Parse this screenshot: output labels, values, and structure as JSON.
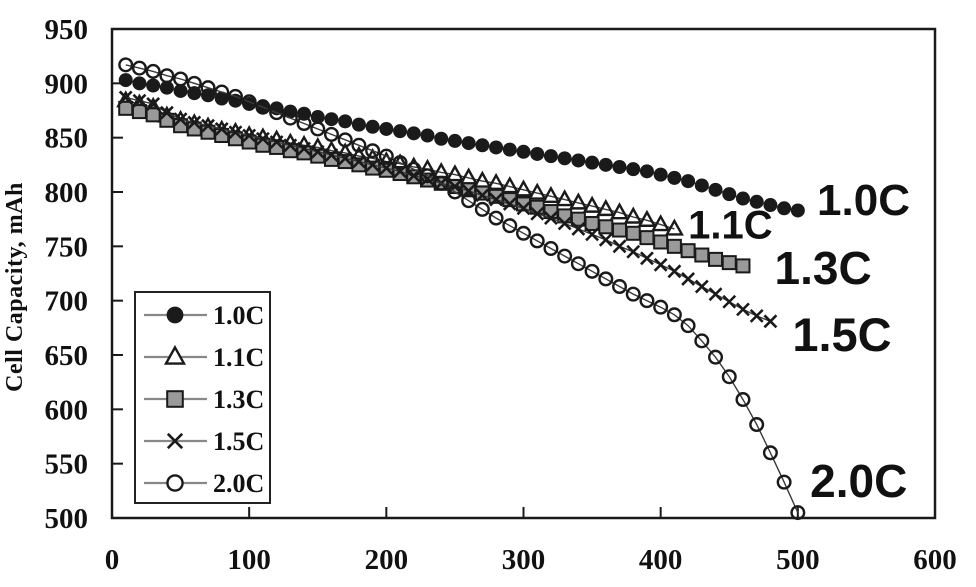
{
  "page": {
    "background": "#ffffff"
  },
  "colors": {
    "axis": "#1a1a1a",
    "text": "#111111",
    "series_line": "#3a3a3a",
    "legend_line": "#888888",
    "square_fill": "#9a9a9a",
    "legend_border": "#222222"
  },
  "chart_data": {
    "type": "line",
    "title": "",
    "xlabel": "",
    "ylabel": "Cell Capacity, mAh",
    "xlim": [
      0,
      600
    ],
    "ylim": [
      500,
      950
    ],
    "x_ticks": [
      0,
      100,
      200,
      300,
      400,
      500,
      600
    ],
    "y_ticks": [
      500,
      550,
      600,
      650,
      700,
      750,
      800,
      850,
      900,
      950
    ],
    "grid": false,
    "legend_position": "inside-left",
    "legend_items": [
      "1.0C",
      "1.1C",
      "1.3C",
      "1.5C",
      "2.0C"
    ],
    "series": [
      {
        "name": "1.0C",
        "marker": "filled-circle",
        "annotation": {
          "text": "1.0C",
          "x": 514,
          "y": 792,
          "size": 44
        },
        "points": [
          [
            10,
            903
          ],
          [
            20,
            900
          ],
          [
            30,
            898
          ],
          [
            40,
            896
          ],
          [
            50,
            893
          ],
          [
            60,
            891
          ],
          [
            70,
            889
          ],
          [
            80,
            886
          ],
          [
            90,
            884
          ],
          [
            100,
            881
          ],
          [
            110,
            879
          ],
          [
            120,
            877
          ],
          [
            130,
            874
          ],
          [
            140,
            872
          ],
          [
            150,
            869
          ],
          [
            160,
            867
          ],
          [
            170,
            865
          ],
          [
            180,
            862
          ],
          [
            190,
            860
          ],
          [
            200,
            858
          ],
          [
            210,
            856
          ],
          [
            220,
            854
          ],
          [
            230,
            852
          ],
          [
            240,
            849
          ],
          [
            250,
            847
          ],
          [
            260,
            845
          ],
          [
            270,
            843
          ],
          [
            280,
            841
          ],
          [
            290,
            839
          ],
          [
            300,
            837
          ],
          [
            310,
            835
          ],
          [
            320,
            833
          ],
          [
            330,
            831
          ],
          [
            340,
            829
          ],
          [
            350,
            827
          ],
          [
            360,
            825
          ],
          [
            370,
            823
          ],
          [
            380,
            821
          ],
          [
            390,
            819
          ],
          [
            400,
            816
          ],
          [
            410,
            813
          ],
          [
            420,
            810
          ],
          [
            430,
            806
          ],
          [
            440,
            802
          ],
          [
            450,
            798
          ],
          [
            460,
            794
          ],
          [
            470,
            791
          ],
          [
            480,
            788
          ],
          [
            490,
            785
          ],
          [
            500,
            783
          ]
        ]
      },
      {
        "name": "1.1C",
        "marker": "open-triangle",
        "annotation": {
          "text": "1.1C",
          "x": 420,
          "y": 769,
          "size": 40
        },
        "points": [
          [
            10,
            884
          ],
          [
            20,
            881
          ],
          [
            30,
            878
          ],
          [
            40,
            870
          ],
          [
            50,
            866
          ],
          [
            60,
            863
          ],
          [
            70,
            860
          ],
          [
            80,
            857
          ],
          [
            90,
            855
          ],
          [
            100,
            852
          ],
          [
            110,
            850
          ],
          [
            120,
            848
          ],
          [
            130,
            845
          ],
          [
            140,
            843
          ],
          [
            150,
            841
          ],
          [
            160,
            838
          ],
          [
            170,
            836
          ],
          [
            180,
            833
          ],
          [
            190,
            831
          ],
          [
            200,
            828
          ],
          [
            210,
            826
          ],
          [
            220,
            823
          ],
          [
            230,
            821
          ],
          [
            240,
            818
          ],
          [
            250,
            816
          ],
          [
            260,
            813
          ],
          [
            270,
            810
          ],
          [
            280,
            808
          ],
          [
            290,
            805
          ],
          [
            300,
            802
          ],
          [
            310,
            799
          ],
          [
            320,
            796
          ],
          [
            330,
            793
          ],
          [
            340,
            790
          ],
          [
            350,
            787
          ],
          [
            360,
            784
          ],
          [
            370,
            781
          ],
          [
            380,
            777
          ],
          [
            390,
            774
          ],
          [
            400,
            770
          ],
          [
            410,
            766
          ]
        ]
      },
      {
        "name": "1.3C",
        "marker": "filled-square",
        "annotation": {
          "text": "1.3C",
          "x": 483,
          "y": 730,
          "size": 46
        },
        "points": [
          [
            10,
            877
          ],
          [
            20,
            874
          ],
          [
            30,
            871
          ],
          [
            40,
            866
          ],
          [
            50,
            861
          ],
          [
            60,
            858
          ],
          [
            70,
            855
          ],
          [
            80,
            852
          ],
          [
            90,
            849
          ],
          [
            100,
            846
          ],
          [
            110,
            843
          ],
          [
            120,
            841
          ],
          [
            130,
            838
          ],
          [
            140,
            836
          ],
          [
            150,
            833
          ],
          [
            160,
            830
          ],
          [
            170,
            828
          ],
          [
            180,
            825
          ],
          [
            190,
            822
          ],
          [
            200,
            820
          ],
          [
            210,
            817
          ],
          [
            220,
            814
          ],
          [
            230,
            811
          ],
          [
            240,
            808
          ],
          [
            250,
            805
          ],
          [
            260,
            802
          ],
          [
            270,
            799
          ],
          [
            280,
            796
          ],
          [
            290,
            793
          ],
          [
            300,
            789
          ],
          [
            310,
            786
          ],
          [
            320,
            782
          ],
          [
            330,
            778
          ],
          [
            340,
            775
          ],
          [
            350,
            771
          ],
          [
            360,
            768
          ],
          [
            370,
            765
          ],
          [
            380,
            762
          ],
          [
            390,
            758
          ],
          [
            400,
            754
          ],
          [
            410,
            750
          ],
          [
            420,
            746
          ],
          [
            430,
            742
          ],
          [
            440,
            738
          ],
          [
            450,
            735
          ],
          [
            460,
            732
          ]
        ]
      },
      {
        "name": "1.5C",
        "marker": "x-cross",
        "annotation": {
          "text": "1.5C",
          "x": 496,
          "y": 669,
          "size": 47
        },
        "points": [
          [
            10,
            887
          ],
          [
            20,
            884
          ],
          [
            30,
            881
          ],
          [
            40,
            873
          ],
          [
            50,
            867
          ],
          [
            60,
            864
          ],
          [
            70,
            861
          ],
          [
            80,
            858
          ],
          [
            90,
            855
          ],
          [
            100,
            852
          ],
          [
            110,
            849
          ],
          [
            120,
            846
          ],
          [
            130,
            843
          ],
          [
            140,
            840
          ],
          [
            150,
            837
          ],
          [
            160,
            834
          ],
          [
            170,
            831
          ],
          [
            180,
            828
          ],
          [
            190,
            825
          ],
          [
            200,
            822
          ],
          [
            210,
            819
          ],
          [
            220,
            815
          ],
          [
            230,
            812
          ],
          [
            240,
            808
          ],
          [
            250,
            805
          ],
          [
            260,
            801
          ],
          [
            270,
            797
          ],
          [
            280,
            793
          ],
          [
            290,
            789
          ],
          [
            300,
            785
          ],
          [
            310,
            780
          ],
          [
            320,
            776
          ],
          [
            330,
            771
          ],
          [
            340,
            766
          ],
          [
            350,
            761
          ],
          [
            360,
            756
          ],
          [
            370,
            750
          ],
          [
            380,
            745
          ],
          [
            390,
            739
          ],
          [
            400,
            733
          ],
          [
            410,
            727
          ],
          [
            420,
            720
          ],
          [
            430,
            713
          ],
          [
            440,
            706
          ],
          [
            450,
            699
          ],
          [
            460,
            692
          ],
          [
            470,
            686
          ],
          [
            480,
            681
          ]
        ]
      },
      {
        "name": "2.0C",
        "marker": "open-circle",
        "annotation": {
          "text": "2.0C",
          "x": 509,
          "y": 534,
          "size": 46
        },
        "points": [
          [
            10,
            917
          ],
          [
            20,
            914
          ],
          [
            30,
            911
          ],
          [
            40,
            907
          ],
          [
            50,
            904
          ],
          [
            60,
            900
          ],
          [
            70,
            896
          ],
          [
            80,
            892
          ],
          [
            90,
            888
          ],
          [
            100,
            883
          ],
          [
            110,
            878
          ],
          [
            120,
            873
          ],
          [
            130,
            868
          ],
          [
            140,
            863
          ],
          [
            150,
            858
          ],
          [
            160,
            853
          ],
          [
            170,
            848
          ],
          [
            180,
            843
          ],
          [
            190,
            838
          ],
          [
            200,
            833
          ],
          [
            210,
            827
          ],
          [
            220,
            821
          ],
          [
            230,
            815
          ],
          [
            240,
            808
          ],
          [
            250,
            800
          ],
          [
            260,
            792
          ],
          [
            270,
            784
          ],
          [
            280,
            776
          ],
          [
            290,
            769
          ],
          [
            300,
            762
          ],
          [
            310,
            755
          ],
          [
            320,
            748
          ],
          [
            330,
            741
          ],
          [
            340,
            734
          ],
          [
            350,
            727
          ],
          [
            360,
            720
          ],
          [
            370,
            713
          ],
          [
            380,
            706
          ],
          [
            390,
            700
          ],
          [
            400,
            694
          ],
          [
            410,
            687
          ],
          [
            420,
            677
          ],
          [
            430,
            663
          ],
          [
            440,
            648
          ],
          [
            450,
            630
          ],
          [
            460,
            609
          ],
          [
            470,
            586
          ],
          [
            480,
            560
          ],
          [
            490,
            533
          ],
          [
            500,
            505
          ]
        ]
      }
    ]
  }
}
